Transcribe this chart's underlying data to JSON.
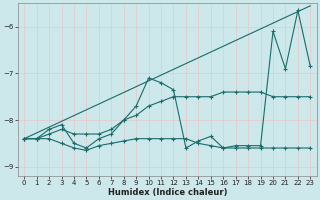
{
  "xlabel": "Humidex (Indice chaleur)",
  "bg_color": "#cce8ea",
  "grid_color": "#e8c8c8",
  "line_color": "#1a6b6b",
  "xlim": [
    -0.5,
    23.5
  ],
  "ylim": [
    -9.2,
    -5.5
  ],
  "yticks": [
    -9,
    -8,
    -7,
    -6
  ],
  "xticks": [
    0,
    1,
    2,
    3,
    4,
    5,
    6,
    7,
    8,
    9,
    10,
    11,
    12,
    13,
    14,
    15,
    16,
    17,
    18,
    19,
    20,
    21,
    22,
    23
  ],
  "series": [
    {
      "x": [
        0,
        23
      ],
      "y": [
        -8.4,
        -5.55
      ],
      "marker": false
    },
    {
      "x": [
        0,
        1,
        2,
        3,
        4,
        5,
        6,
        7,
        8,
        9,
        10,
        11,
        12,
        13,
        14,
        15,
        16,
        17,
        18,
        19,
        20,
        21,
        22,
        23
      ],
      "y": [
        -8.4,
        -8.4,
        -8.3,
        -8.2,
        -8.3,
        -8.3,
        -8.3,
        -8.2,
        -8.0,
        -7.9,
        -7.7,
        -7.6,
        -7.5,
        -7.5,
        -7.5,
        -7.5,
        -7.4,
        -7.4,
        -7.4,
        -7.4,
        -7.5,
        -7.5,
        -7.5,
        -7.5
      ],
      "marker": true
    },
    {
      "x": [
        0,
        1,
        2,
        3,
        4,
        5,
        6,
        7,
        8,
        9,
        10,
        11,
        12,
        13,
        14,
        15,
        16,
        17,
        18,
        19,
        20,
        21,
        22,
        23
      ],
      "y": [
        -8.4,
        -8.4,
        -8.2,
        -8.1,
        -8.5,
        -8.6,
        -8.4,
        -8.3,
        -8.0,
        -7.7,
        -7.1,
        -7.2,
        -7.35,
        -8.6,
        -8.45,
        -8.35,
        -8.6,
        -8.55,
        -8.55,
        -8.55,
        -6.1,
        -6.9,
        -5.65,
        -6.85
      ],
      "marker": true
    },
    {
      "x": [
        0,
        1,
        2,
        3,
        4,
        5,
        6,
        7,
        8,
        9,
        10,
        11,
        12,
        13,
        14,
        15,
        16,
        17,
        18,
        19,
        20,
        21,
        22,
        23
      ],
      "y": [
        -8.4,
        -8.4,
        -8.4,
        -8.5,
        -8.6,
        -8.65,
        -8.55,
        -8.5,
        -8.45,
        -8.4,
        -8.4,
        -8.4,
        -8.4,
        -8.4,
        -8.5,
        -8.55,
        -8.6,
        -8.6,
        -8.6,
        -8.6,
        -8.6,
        -8.6,
        -8.6,
        -8.6
      ],
      "marker": true
    }
  ]
}
